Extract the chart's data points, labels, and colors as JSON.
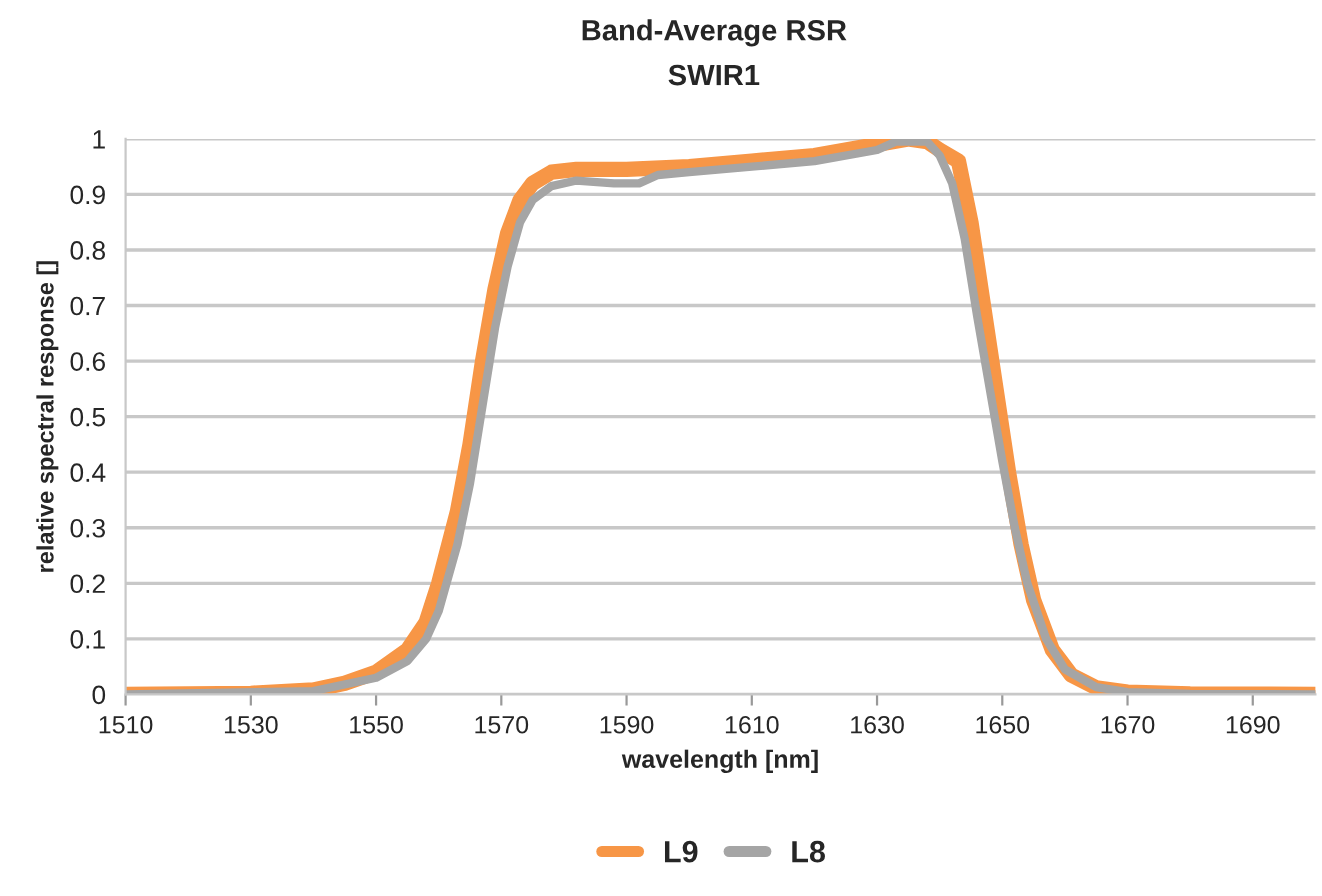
{
  "chart_data": {
    "type": "line",
    "title": "Band-Average RSR",
    "subtitle": "SWIR1",
    "xlabel": "wavelength [nm]",
    "ylabel": "relative spectral response []",
    "xlim": [
      1510,
      1700
    ],
    "xticks": [
      1510,
      1530,
      1550,
      1570,
      1590,
      1610,
      1630,
      1650,
      1670,
      1690
    ],
    "ylim": [
      0,
      1
    ],
    "yticks": [
      0,
      0.1,
      0.2,
      0.3,
      0.4,
      0.5,
      0.6,
      0.7,
      0.8,
      0.9,
      1
    ],
    "grid": "y",
    "legend": "bottom",
    "marker": "none",
    "line_style": "solid",
    "series": [
      {
        "name": "L9",
        "color": "#f79646",
        "x": [
          1510,
          1530,
          1540,
          1545,
          1550,
          1555,
          1558,
          1560,
          1563,
          1565,
          1567,
          1569,
          1571,
          1573,
          1575,
          1578,
          1582,
          1590,
          1600,
          1610,
          1620,
          1630,
          1635,
          1638,
          1640,
          1643,
          1645,
          1647,
          1649,
          1651,
          1653,
          1655,
          1658,
          1661,
          1665,
          1670,
          1680,
          1700
        ],
        "values": [
          0,
          0.002,
          0.008,
          0.02,
          0.04,
          0.08,
          0.13,
          0.2,
          0.33,
          0.45,
          0.6,
          0.73,
          0.83,
          0.89,
          0.92,
          0.94,
          0.945,
          0.945,
          0.95,
          0.96,
          0.97,
          0.99,
          1.0,
          0.995,
          0.98,
          0.96,
          0.85,
          0.7,
          0.55,
          0.4,
          0.27,
          0.17,
          0.08,
          0.035,
          0.012,
          0.004,
          0.001,
          0
        ]
      },
      {
        "name": "L8",
        "color": "#a5a5a5",
        "x": [
          1510,
          1540,
          1550,
          1555,
          1558,
          1560,
          1563,
          1565,
          1567,
          1569,
          1571,
          1573,
          1575,
          1578,
          1582,
          1588,
          1592,
          1595,
          1600,
          1610,
          1620,
          1630,
          1633,
          1638,
          1640,
          1642,
          1644,
          1646,
          1648,
          1650,
          1652,
          1654,
          1657,
          1660,
          1665,
          1670,
          1680,
          1700
        ],
        "values": [
          0,
          0.006,
          0.03,
          0.06,
          0.1,
          0.15,
          0.27,
          0.38,
          0.52,
          0.66,
          0.77,
          0.85,
          0.89,
          0.915,
          0.925,
          0.92,
          0.92,
          0.935,
          0.94,
          0.95,
          0.96,
          0.98,
          0.995,
          0.995,
          0.97,
          0.92,
          0.82,
          0.68,
          0.55,
          0.42,
          0.3,
          0.2,
          0.1,
          0.045,
          0.013,
          0.004,
          0.001,
          0
        ]
      }
    ]
  }
}
